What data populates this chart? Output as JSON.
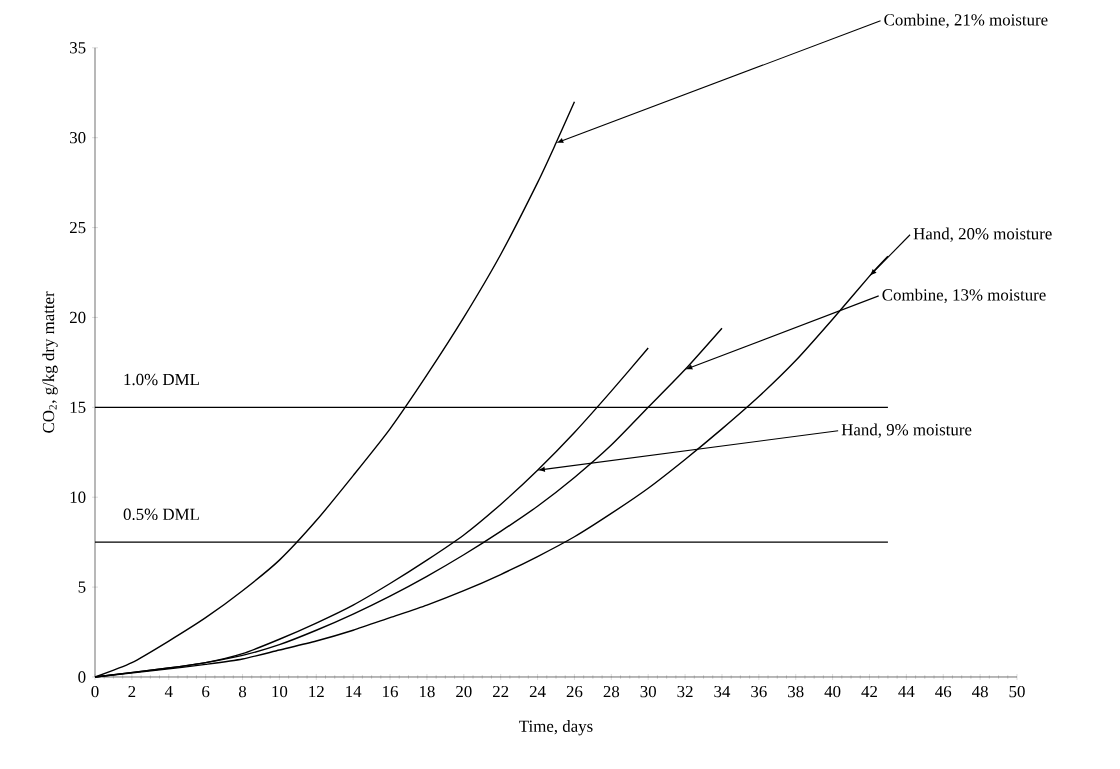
{
  "chart_data": {
    "type": "line",
    "xlabel": "Time, days",
    "ylabel": "CO$_{2}$, g/kg dry matter",
    "xlim": [
      0,
      50
    ],
    "ylim": [
      0,
      35
    ],
    "xticks": [
      0,
      2,
      4,
      6,
      8,
      10,
      12,
      14,
      16,
      18,
      20,
      22,
      24,
      26,
      28,
      30,
      32,
      34,
      36,
      38,
      40,
      42,
      44,
      46,
      48,
      50
    ],
    "yticks": [
      0,
      5,
      10,
      15,
      20,
      25,
      30,
      35
    ],
    "series": [
      {
        "color": "#000000",
        "x": [
          0,
          2,
          4,
          6,
          8,
          10,
          12,
          14,
          16,
          18,
          20,
          22,
          24,
          25,
          26
        ],
        "values": [
          0,
          0.8,
          2,
          3.3,
          4.8,
          6.5,
          8.7,
          11.2,
          13.8,
          16.8,
          20,
          23.5,
          27.5,
          29.7,
          32
        ]
      },
      {
        "color": "#000000",
        "x": [
          0,
          4,
          6,
          8,
          10,
          12,
          14,
          16,
          18,
          20,
          22,
          24,
          26,
          28,
          30
        ],
        "values": [
          0,
          0.5,
          0.8,
          1.3,
          2.1,
          3,
          4,
          5.2,
          6.5,
          7.9,
          9.6,
          11.5,
          13.6,
          15.9,
          18.3
        ]
      },
      {
        "color": "#000000",
        "x": [
          0,
          4,
          6,
          8,
          10,
          12,
          14,
          16,
          18,
          20,
          22,
          24,
          26,
          28,
          30,
          32,
          34
        ],
        "values": [
          0,
          0.5,
          0.8,
          1.2,
          1.8,
          2.6,
          3.5,
          4.5,
          5.6,
          6.8,
          8.1,
          9.5,
          11.1,
          12.9,
          15,
          17.1,
          19.4
        ]
      },
      {
        "color": "#000000",
        "x": [
          0,
          4,
          6,
          8,
          10,
          12,
          14,
          16,
          18,
          20,
          22,
          24,
          26,
          28,
          30,
          32,
          34,
          36,
          38,
          40,
          42,
          43
        ],
        "values": [
          0,
          0.45,
          0.7,
          1,
          1.5,
          2,
          2.6,
          3.3,
          4,
          4.8,
          5.7,
          6.7,
          7.8,
          9.1,
          10.5,
          12.1,
          13.8,
          15.6,
          17.6,
          19.9,
          22.3,
          23.4
        ]
      }
    ],
    "ref_lines": [
      {
        "axis": "y",
        "value": 15,
        "label": "1.0% DML",
        "color": "#000000"
      },
      {
        "axis": "y",
        "value": 7.5,
        "label": "0.5% DML",
        "color": "#000000"
      }
    ],
    "annotations": [
      {
        "text": "Combine, 21% moisture",
        "x": 25,
        "y": 29.7
      },
      {
        "text": "Hand, 20% moisture",
        "x": 42,
        "y": 22.3
      },
      {
        "text": "Combine, 13% moisture",
        "x": 32,
        "y": 17.1
      },
      {
        "text": "Hand, 9% moisture",
        "x": 24,
        "y": 11.5
      }
    ],
    "line_style": "solid"
  }
}
